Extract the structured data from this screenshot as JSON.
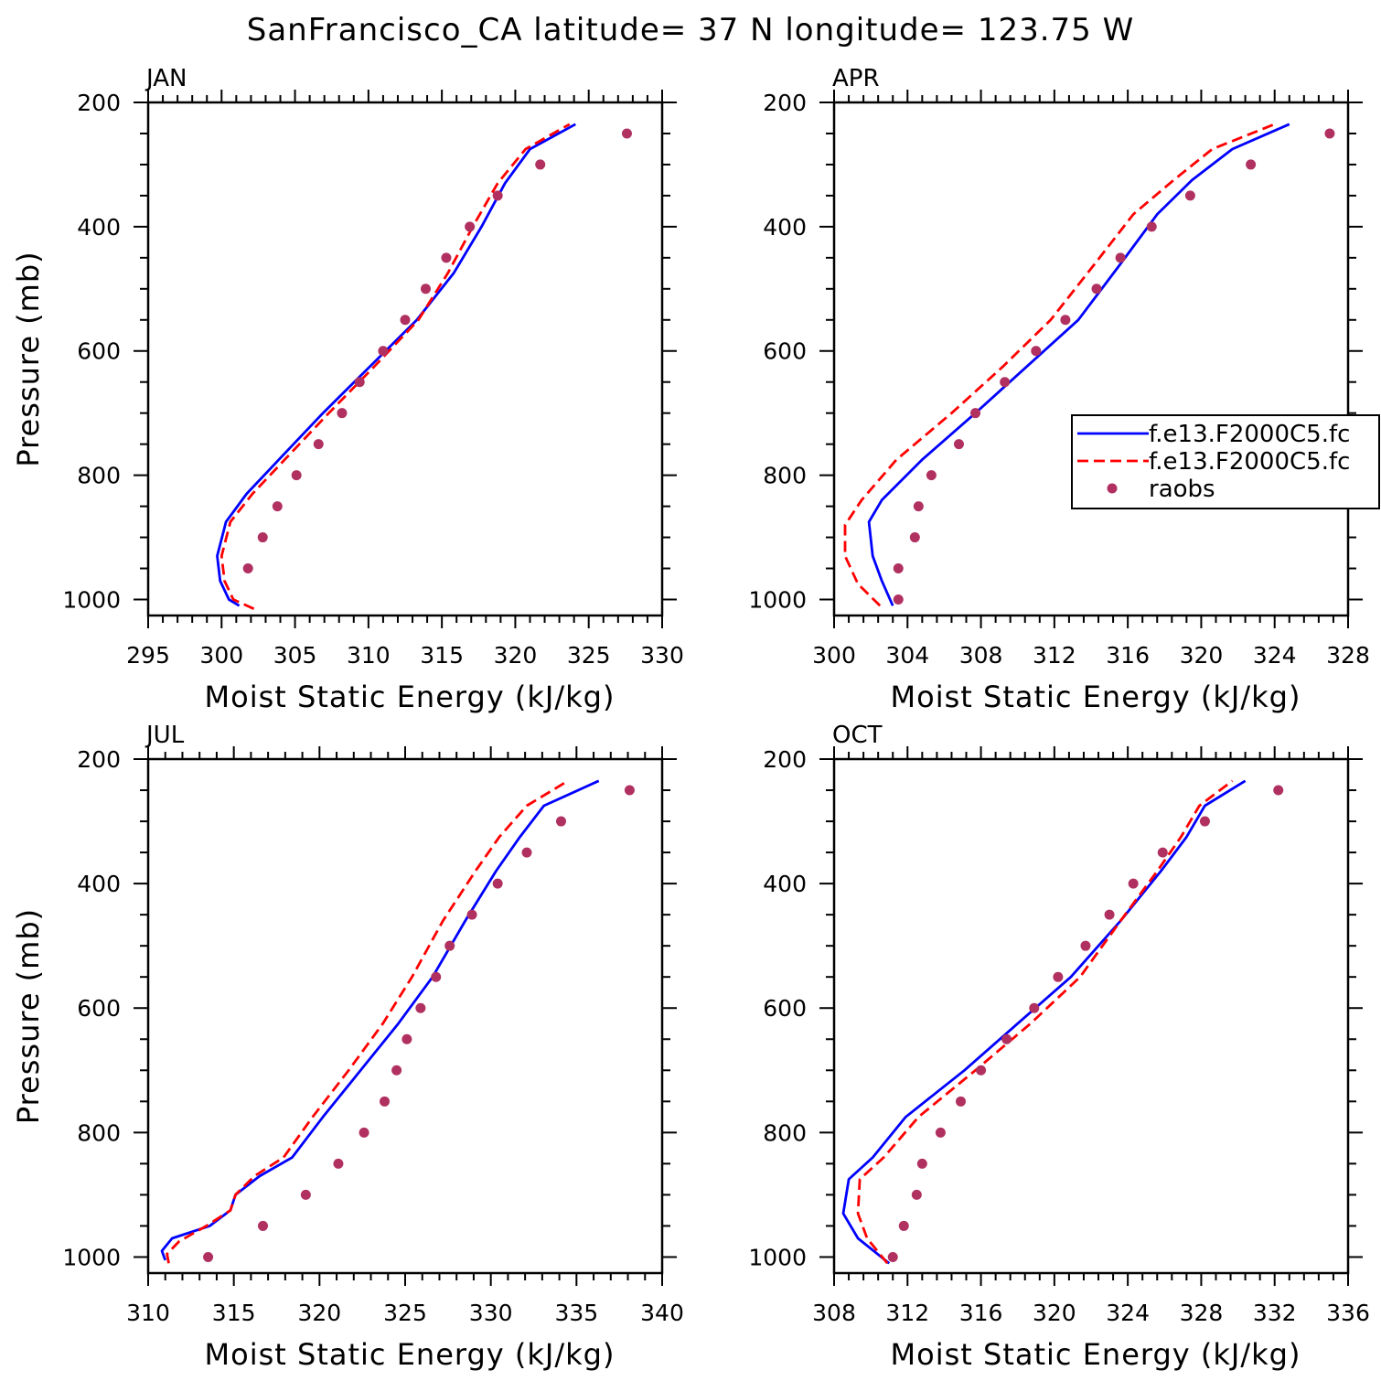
{
  "title": "SanFrancisco_CA  latitude= 37 N longitude= 123.75 W",
  "legend": {
    "items": [
      {
        "label": "f.e13.F2000C5.fc",
        "style": "solid",
        "color": "#0000ff"
      },
      {
        "label": "f.e13.F2000C5.fc",
        "style": "dashed",
        "color": "#ff0000"
      },
      {
        "label": "raobs",
        "style": "dot",
        "color": "#b03060"
      }
    ]
  },
  "colors": {
    "model1": "#0000ff",
    "model2": "#ff0000",
    "raobs": "#b03060"
  },
  "chart_data": [
    {
      "type": "line",
      "panel": "JAN",
      "xlabel": "Moist Static Energy (kJ/kg)",
      "ylabel": "Pressure (mb)",
      "xlim": [
        295,
        330
      ],
      "ylim": [
        1000,
        200
      ],
      "xticks": [
        295,
        300,
        305,
        310,
        315,
        320,
        325,
        330
      ],
      "yticks": [
        200,
        400,
        600,
        800,
        1000
      ],
      "series": [
        {
          "name": "f.e13.F2000C5.fc",
          "style": "solid",
          "points": [
            [
              301.2,
              1010
            ],
            [
              300.5,
              1000
            ],
            [
              299.9,
              970
            ],
            [
              299.7,
              930
            ],
            [
              300.3,
              875
            ],
            [
              301.7,
              830
            ],
            [
              303.9,
              775
            ],
            [
              306.9,
              700
            ],
            [
              310.1,
              625
            ],
            [
              313.3,
              550
            ],
            [
              315.8,
              475
            ],
            [
              317.7,
              400
            ],
            [
              319.3,
              330
            ],
            [
              321.0,
              275
            ],
            [
              324.1,
              235
            ]
          ]
        },
        {
          "name": "f.e13.F2000C5.fc",
          "style": "dashed",
          "points": [
            [
              302.2,
              1015
            ],
            [
              300.8,
              1000
            ],
            [
              300.2,
              970
            ],
            [
              300.0,
              930
            ],
            [
              300.6,
              875
            ],
            [
              302.1,
              830
            ],
            [
              304.3,
              775
            ],
            [
              307.3,
              700
            ],
            [
              310.4,
              625
            ],
            [
              313.4,
              550
            ],
            [
              315.4,
              475
            ],
            [
              317.1,
              400
            ],
            [
              318.8,
              330
            ],
            [
              320.7,
              275
            ],
            [
              323.7,
              235
            ]
          ]
        },
        {
          "name": "raobs",
          "style": "dot",
          "points": [
            [
              301.8,
              950
            ],
            [
              302.8,
              900
            ],
            [
              303.8,
              850
            ],
            [
              305.1,
              800
            ],
            [
              306.6,
              750
            ],
            [
              308.2,
              700
            ],
            [
              309.4,
              650
            ],
            [
              311.0,
              600
            ],
            [
              312.5,
              550
            ],
            [
              313.9,
              500
            ],
            [
              315.3,
              450
            ],
            [
              316.9,
              400
            ],
            [
              318.8,
              350
            ],
            [
              321.7,
              300
            ],
            [
              327.6,
              250
            ]
          ]
        }
      ]
    },
    {
      "type": "line",
      "panel": "APR",
      "xlabel": "Moist Static Energy (kJ/kg)",
      "ylabel": "",
      "xlim": [
        300,
        328
      ],
      "ylim": [
        1000,
        200
      ],
      "xticks": [
        300,
        304,
        308,
        312,
        316,
        320,
        324,
        328
      ],
      "yticks": [
        200,
        400,
        600,
        800,
        1000
      ],
      "series": [
        {
          "name": "f.e13.F2000C5.fc",
          "style": "solid",
          "points": [
            [
              303.2,
              1010
            ],
            [
              302.6,
              970
            ],
            [
              302.1,
              930
            ],
            [
              301.9,
              875
            ],
            [
              302.6,
              840
            ],
            [
              304.8,
              775
            ],
            [
              307.7,
              700
            ],
            [
              310.5,
              625
            ],
            [
              313.3,
              550
            ],
            [
              315.6,
              460
            ],
            [
              317.6,
              380
            ],
            [
              319.5,
              325
            ],
            [
              321.7,
              275
            ],
            [
              324.8,
              235
            ]
          ]
        },
        {
          "name": "f.e13.F2000C5.fc",
          "style": "dashed",
          "points": [
            [
              302.5,
              1010
            ],
            [
              301.3,
              975
            ],
            [
              300.6,
              930
            ],
            [
              300.6,
              880
            ],
            [
              301.5,
              840
            ],
            [
              303.4,
              775
            ],
            [
              306.4,
              700
            ],
            [
              309.2,
              625
            ],
            [
              311.8,
              550
            ],
            [
              314.2,
              460
            ],
            [
              316.3,
              380
            ],
            [
              318.5,
              325
            ],
            [
              320.6,
              275
            ],
            [
              324.0,
              235
            ]
          ]
        },
        {
          "name": "raobs",
          "style": "dot",
          "points": [
            [
              303.5,
              1000
            ],
            [
              303.5,
              950
            ],
            [
              304.4,
              900
            ],
            [
              304.6,
              850
            ],
            [
              305.3,
              800
            ],
            [
              306.8,
              750
            ],
            [
              307.7,
              700
            ],
            [
              309.3,
              650
            ],
            [
              311.0,
              600
            ],
            [
              312.6,
              550
            ],
            [
              314.3,
              500
            ],
            [
              315.6,
              450
            ],
            [
              317.3,
              400
            ],
            [
              319.4,
              350
            ],
            [
              322.7,
              300
            ],
            [
              327.0,
              250
            ]
          ]
        }
      ]
    },
    {
      "type": "line",
      "panel": "JUL",
      "xlabel": "Moist Static Energy (kJ/kg)",
      "ylabel": "Pressure (mb)",
      "xlim": [
        310,
        340
      ],
      "ylim": [
        1000,
        200
      ],
      "xticks": [
        310,
        315,
        320,
        325,
        330,
        335,
        340
      ],
      "yticks": [
        200,
        400,
        600,
        800,
        1000
      ],
      "series": [
        {
          "name": "f.e13.F2000C5.fc",
          "style": "solid",
          "points": [
            [
              311.0,
              1005
            ],
            [
              310.8,
              990
            ],
            [
              311.4,
              970
            ],
            [
              313.6,
              950
            ],
            [
              314.8,
              925
            ],
            [
              315.1,
              900
            ],
            [
              316.5,
              870
            ],
            [
              318.4,
              840
            ],
            [
              320.2,
              775
            ],
            [
              322.4,
              700
            ],
            [
              324.6,
              625
            ],
            [
              326.6,
              550
            ],
            [
              328.5,
              460
            ],
            [
              330.3,
              380
            ],
            [
              331.7,
              325
            ],
            [
              333.1,
              275
            ],
            [
              336.3,
              235
            ]
          ]
        },
        {
          "name": "f.e13.F2000C5.fc",
          "style": "dashed",
          "points": [
            [
              311.2,
              1010
            ],
            [
              311.1,
              995
            ],
            [
              311.8,
              975
            ],
            [
              313.4,
              950
            ],
            [
              314.8,
              925
            ],
            [
              315.1,
              900
            ],
            [
              316.2,
              870
            ],
            [
              317.9,
              840
            ],
            [
              319.6,
              775
            ],
            [
              321.7,
              700
            ],
            [
              323.7,
              625
            ],
            [
              325.4,
              550
            ],
            [
              327.2,
              460
            ],
            [
              329.1,
              380
            ],
            [
              330.5,
              325
            ],
            [
              332.1,
              275
            ],
            [
              334.5,
              235
            ]
          ]
        },
        {
          "name": "raobs",
          "style": "dot",
          "points": [
            [
              313.5,
              1000
            ],
            [
              316.7,
              950
            ],
            [
              319.2,
              900
            ],
            [
              321.1,
              850
            ],
            [
              322.6,
              800
            ],
            [
              323.8,
              750
            ],
            [
              324.5,
              700
            ],
            [
              325.1,
              650
            ],
            [
              325.9,
              600
            ],
            [
              326.8,
              550
            ],
            [
              327.6,
              500
            ],
            [
              328.9,
              450
            ],
            [
              330.4,
              400
            ],
            [
              332.1,
              350
            ],
            [
              334.1,
              300
            ],
            [
              338.1,
              250
            ]
          ]
        }
      ]
    },
    {
      "type": "line",
      "panel": "OCT",
      "xlabel": "Moist Static Energy (kJ/kg)",
      "ylabel": "",
      "xlim": [
        308,
        336
      ],
      "ylim": [
        1000,
        200
      ],
      "xticks": [
        308,
        312,
        316,
        320,
        324,
        328,
        332,
        336
      ],
      "yticks": [
        200,
        400,
        600,
        800,
        1000
      ],
      "series": [
        {
          "name": "f.e13.F2000C5.fc",
          "style": "solid",
          "points": [
            [
              311.0,
              1010
            ],
            [
              309.3,
              970
            ],
            [
              308.5,
              930
            ],
            [
              308.8,
              875
            ],
            [
              310.1,
              840
            ],
            [
              311.9,
              775
            ],
            [
              315.1,
              700
            ],
            [
              318.0,
              625
            ],
            [
              320.9,
              550
            ],
            [
              323.6,
              460
            ],
            [
              325.8,
              380
            ],
            [
              327.2,
              325
            ],
            [
              328.2,
              275
            ],
            [
              330.4,
              235
            ]
          ]
        },
        {
          "name": "f.e13.F2000C5.fc",
          "style": "dashed",
          "points": [
            [
              310.9,
              1010
            ],
            [
              309.8,
              970
            ],
            [
              309.3,
              930
            ],
            [
              309.4,
              875
            ],
            [
              310.7,
              840
            ],
            [
              312.6,
              775
            ],
            [
              315.7,
              700
            ],
            [
              318.7,
              625
            ],
            [
              321.4,
              550
            ],
            [
              323.6,
              460
            ],
            [
              325.6,
              380
            ],
            [
              326.9,
              325
            ],
            [
              327.9,
              275
            ],
            [
              329.7,
              235
            ]
          ]
        },
        {
          "name": "raobs",
          "style": "dot",
          "points": [
            [
              311.2,
              1000
            ],
            [
              311.8,
              950
            ],
            [
              312.5,
              900
            ],
            [
              312.8,
              850
            ],
            [
              313.8,
              800
            ],
            [
              314.9,
              750
            ],
            [
              316.0,
              700
            ],
            [
              317.4,
              650
            ],
            [
              318.9,
              600
            ],
            [
              320.2,
              550
            ],
            [
              321.7,
              500
            ],
            [
              323.0,
              450
            ],
            [
              324.3,
              400
            ],
            [
              325.9,
              350
            ],
            [
              328.2,
              300
            ],
            [
              332.2,
              250
            ]
          ]
        }
      ]
    }
  ]
}
